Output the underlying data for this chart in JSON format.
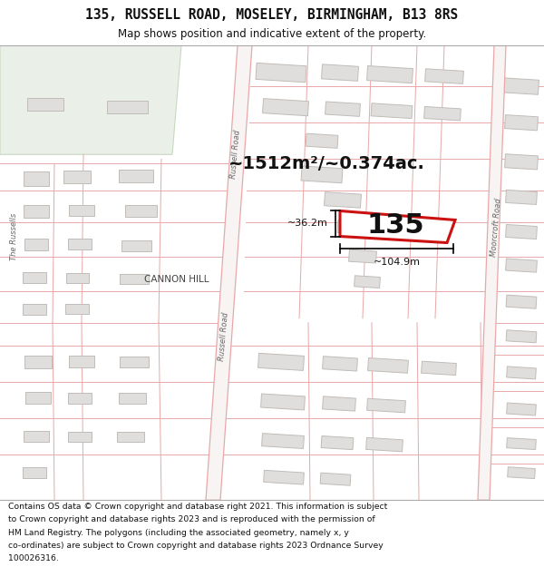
{
  "title_line1": "135, RUSSELL ROAD, MOSELEY, BIRMINGHAM, B13 8RS",
  "title_line2": "Map shows position and indicative extent of the property.",
  "footer_lines": [
    "Contains OS data © Crown copyright and database right 2021. This information is subject",
    "to Crown copyright and database rights 2023 and is reproduced with the permission of",
    "HM Land Registry. The polygons (including the associated geometry, namely x, y",
    "co-ordinates) are subject to Crown copyright and database rights 2023 Ordnance Survey",
    "100026316."
  ],
  "map_bg": "#ffffff",
  "parcel_bg": "#f0f0ee",
  "road_fill": "#f5f0f0",
  "road_edge": "#e8a8a8",
  "building_fill": "#e0dedd",
  "building_edge": "#c0bcb8",
  "green_fill": "#eaf0e8",
  "green_edge": "#c8d8c0",
  "highlight_edge": "#cc1111",
  "highlight_fill": "#ffffff",
  "text_color": "#111111",
  "road_label_color": "#666666",
  "cannon_label_color": "#444444",
  "area_text": "~1512m²/~0.374ac.",
  "prop_number": "135",
  "dim_width": "~104.9m",
  "dim_height": "~36.2m",
  "label_russell": "Russell Road",
  "label_russell2": "Russell Road",
  "label_cannon": "CANNON HILL",
  "label_moorcroft": "Moorcroft Road",
  "label_the_russells": "The Russells"
}
